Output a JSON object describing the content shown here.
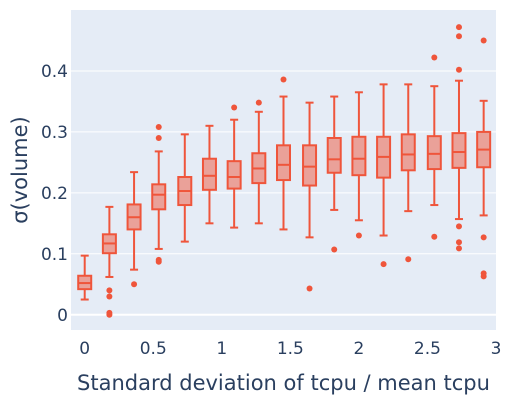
{
  "chart_data": {
    "type": "box",
    "xlabel": "Standard deviation of tcpu / mean tcpu",
    "ylabel": "σ(volume)",
    "xlim": [
      -0.1,
      3.0
    ],
    "ylim": [
      -0.025,
      0.5
    ],
    "grid": true,
    "legend": "none",
    "x_ticks": [
      {
        "value": 0,
        "label": "0"
      },
      {
        "value": 0.5,
        "label": "0.5"
      },
      {
        "value": 1,
        "label": "1"
      },
      {
        "value": 1.5,
        "label": "1.5"
      },
      {
        "value": 2,
        "label": "2"
      },
      {
        "value": 2.5,
        "label": "2.5"
      },
      {
        "value": 3,
        "label": "3"
      }
    ],
    "y_ticks": [
      {
        "value": 0,
        "label": "0"
      },
      {
        "value": 0.1,
        "label": "0.1"
      },
      {
        "value": 0.2,
        "label": "0.2"
      },
      {
        "value": 0.3,
        "label": "0.3"
      },
      {
        "value": 0.4,
        "label": "0.4"
      }
    ],
    "boxes": [
      {
        "x": 0.0,
        "lower_fence": 0.025,
        "q1": 0.042,
        "median": 0.052,
        "q3": 0.064,
        "upper_fence": 0.097,
        "outliers": []
      },
      {
        "x": 0.18,
        "lower_fence": 0.062,
        "q1": 0.101,
        "median": 0.117,
        "q3": 0.132,
        "upper_fence": 0.177,
        "outliers": [
          0.04,
          0.03,
          0.003,
          0.0
        ]
      },
      {
        "x": 0.36,
        "lower_fence": 0.074,
        "q1": 0.14,
        "median": 0.16,
        "q3": 0.181,
        "upper_fence": 0.234,
        "outliers": [
          0.05
        ]
      },
      {
        "x": 0.54,
        "lower_fence": 0.108,
        "q1": 0.173,
        "median": 0.197,
        "q3": 0.214,
        "upper_fence": 0.268,
        "outliers": [
          0.308,
          0.29,
          0.09,
          0.087
        ]
      },
      {
        "x": 0.73,
        "lower_fence": 0.12,
        "q1": 0.18,
        "median": 0.203,
        "q3": 0.226,
        "upper_fence": 0.296,
        "outliers": []
      },
      {
        "x": 0.91,
        "lower_fence": 0.15,
        "q1": 0.205,
        "median": 0.228,
        "q3": 0.256,
        "upper_fence": 0.31,
        "outliers": []
      },
      {
        "x": 1.09,
        "lower_fence": 0.143,
        "q1": 0.207,
        "median": 0.226,
        "q3": 0.252,
        "upper_fence": 0.32,
        "outliers": [
          0.34
        ]
      },
      {
        "x": 1.27,
        "lower_fence": 0.15,
        "q1": 0.216,
        "median": 0.24,
        "q3": 0.265,
        "upper_fence": 0.333,
        "outliers": [
          0.348
        ]
      },
      {
        "x": 1.45,
        "lower_fence": 0.14,
        "q1": 0.221,
        "median": 0.246,
        "q3": 0.278,
        "upper_fence": 0.358,
        "outliers": [
          0.386
        ]
      },
      {
        "x": 1.64,
        "lower_fence": 0.127,
        "q1": 0.212,
        "median": 0.243,
        "q3": 0.278,
        "upper_fence": 0.348,
        "outliers": [
          0.043
        ]
      },
      {
        "x": 1.82,
        "lower_fence": 0.172,
        "q1": 0.233,
        "median": 0.255,
        "q3": 0.29,
        "upper_fence": 0.358,
        "outliers": [
          0.107
        ]
      },
      {
        "x": 2.0,
        "lower_fence": 0.155,
        "q1": 0.229,
        "median": 0.256,
        "q3": 0.292,
        "upper_fence": 0.365,
        "outliers": [
          0.13
        ]
      },
      {
        "x": 2.18,
        "lower_fence": 0.13,
        "q1": 0.225,
        "median": 0.259,
        "q3": 0.292,
        "upper_fence": 0.378,
        "outliers": [
          0.083
        ]
      },
      {
        "x": 2.36,
        "lower_fence": 0.17,
        "q1": 0.237,
        "median": 0.263,
        "q3": 0.296,
        "upper_fence": 0.378,
        "outliers": [
          0.091
        ]
      },
      {
        "x": 2.55,
        "lower_fence": 0.18,
        "q1": 0.239,
        "median": 0.264,
        "q3": 0.293,
        "upper_fence": 0.375,
        "outliers": [
          0.422,
          0.128
        ]
      },
      {
        "x": 2.73,
        "lower_fence": 0.157,
        "q1": 0.241,
        "median": 0.267,
        "q3": 0.298,
        "upper_fence": 0.384,
        "outliers": [
          0.472,
          0.457,
          0.402,
          0.145,
          0.119,
          0.109
        ]
      },
      {
        "x": 2.91,
        "lower_fence": 0.163,
        "q1": 0.242,
        "median": 0.271,
        "q3": 0.3,
        "upper_fence": 0.351,
        "outliers": [
          0.45,
          0.127,
          0.068,
          0.063
        ]
      }
    ]
  },
  "colors": {
    "plot_bg": "#e5ecf6",
    "grid": "#ffffff",
    "box_line": "#ef553b",
    "box_fill": "rgba(239,85,59,0.5)",
    "text": "#2a3f5f"
  }
}
